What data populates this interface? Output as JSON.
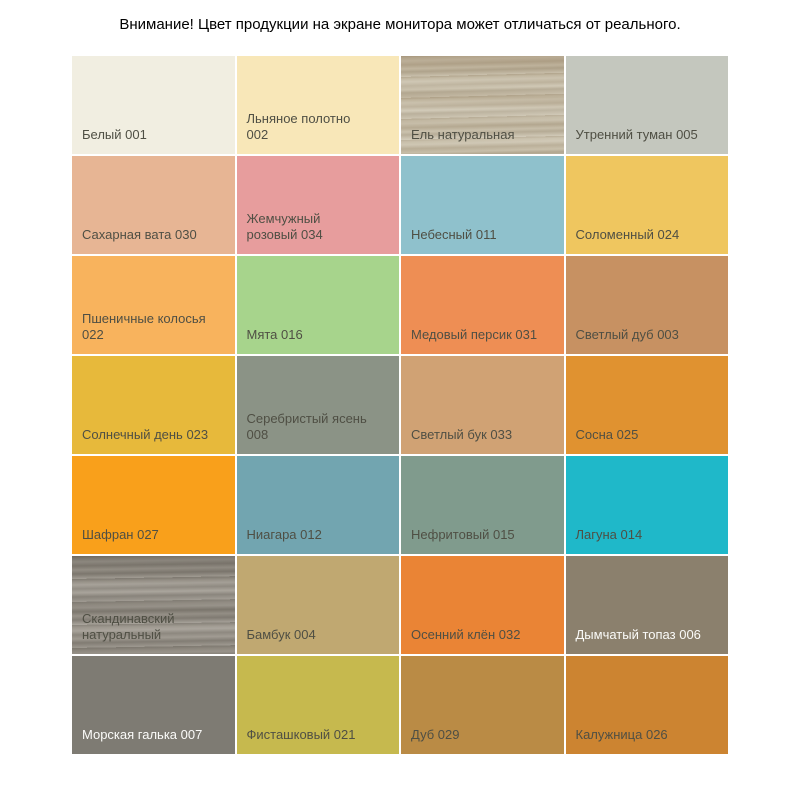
{
  "notice": "Внимание! Цвет продукции на экране монитора может отличаться от реального.",
  "chart_data": {
    "type": "table",
    "grid": {
      "columns": 4,
      "rows": 7
    },
    "swatches": [
      {
        "label": "Белый 001",
        "hex": "#f1eee1",
        "text_color": "dark"
      },
      {
        "label": "Льняное полотно\n002",
        "hex": "#f8e7b8",
        "text_color": "dark"
      },
      {
        "label": "Ель натуральная",
        "hex": "#c8bfa9",
        "text_color": "dark",
        "texture": "wood-light"
      },
      {
        "label": "Утренний туман 005",
        "hex": "#c4c7be",
        "text_color": "dark"
      },
      {
        "label": "Сахарная вата 030",
        "hex": "#e7b594",
        "text_color": "dark"
      },
      {
        "label": "Жемчужный\nрозовый 034",
        "hex": "#e79d9d",
        "text_color": "dark"
      },
      {
        "label": "Небесный 011",
        "hex": "#8fc1cc",
        "text_color": "dark"
      },
      {
        "label": "Соломенный 024",
        "hex": "#efc65f",
        "text_color": "dark"
      },
      {
        "label": "Пшеничные колосья\n022",
        "hex": "#f8b35d",
        "text_color": "dark"
      },
      {
        "label": "Мята 016",
        "hex": "#a7d48c",
        "text_color": "dark"
      },
      {
        "label": "Медовый персик 031",
        "hex": "#ee8e54",
        "text_color": "dark"
      },
      {
        "label": "Светлый дуб 003",
        "hex": "#c79162",
        "text_color": "dark"
      },
      {
        "label": "Солнечный день 023",
        "hex": "#e7b93b",
        "text_color": "dark"
      },
      {
        "label": "Серебристый ясень\n008",
        "hex": "#8b9386",
        "text_color": "dark"
      },
      {
        "label": "Светлый бук 033",
        "hex": "#d0a274",
        "text_color": "dark"
      },
      {
        "label": "Сосна 025",
        "hex": "#e09230",
        "text_color": "dark"
      },
      {
        "label": "Шафран 027",
        "hex": "#f9a01b",
        "text_color": "dark"
      },
      {
        "label": "Ниагара 012",
        "hex": "#72a5b0",
        "text_color": "dark"
      },
      {
        "label": "Нефритовый 015",
        "hex": "#809b8d",
        "text_color": "dark"
      },
      {
        "label": "Лагуна 014",
        "hex": "#1fb8c9",
        "text_color": "dark"
      },
      {
        "label": "Скандинавский\nнатуральный",
        "hex": "#9c968c",
        "text_color": "dark",
        "texture": "wood-gray"
      },
      {
        "label": "Бамбук 004",
        "hex": "#c0a871",
        "text_color": "dark"
      },
      {
        "label": "Осенний клён 032",
        "hex": "#ea8435",
        "text_color": "dark"
      },
      {
        "label": "Дымчатый топаз 006",
        "hex": "#8b806d",
        "text_color": "light"
      },
      {
        "label": "Морская галька 007",
        "hex": "#7e7b73",
        "text_color": "light"
      },
      {
        "label": "Фисташковый 021",
        "hex": "#c6b94e",
        "text_color": "dark"
      },
      {
        "label": "Дуб 029",
        "hex": "#ba8b45",
        "text_color": "dark"
      },
      {
        "label": "Калужница 026",
        "hex": "#cc8431",
        "text_color": "dark"
      }
    ]
  }
}
